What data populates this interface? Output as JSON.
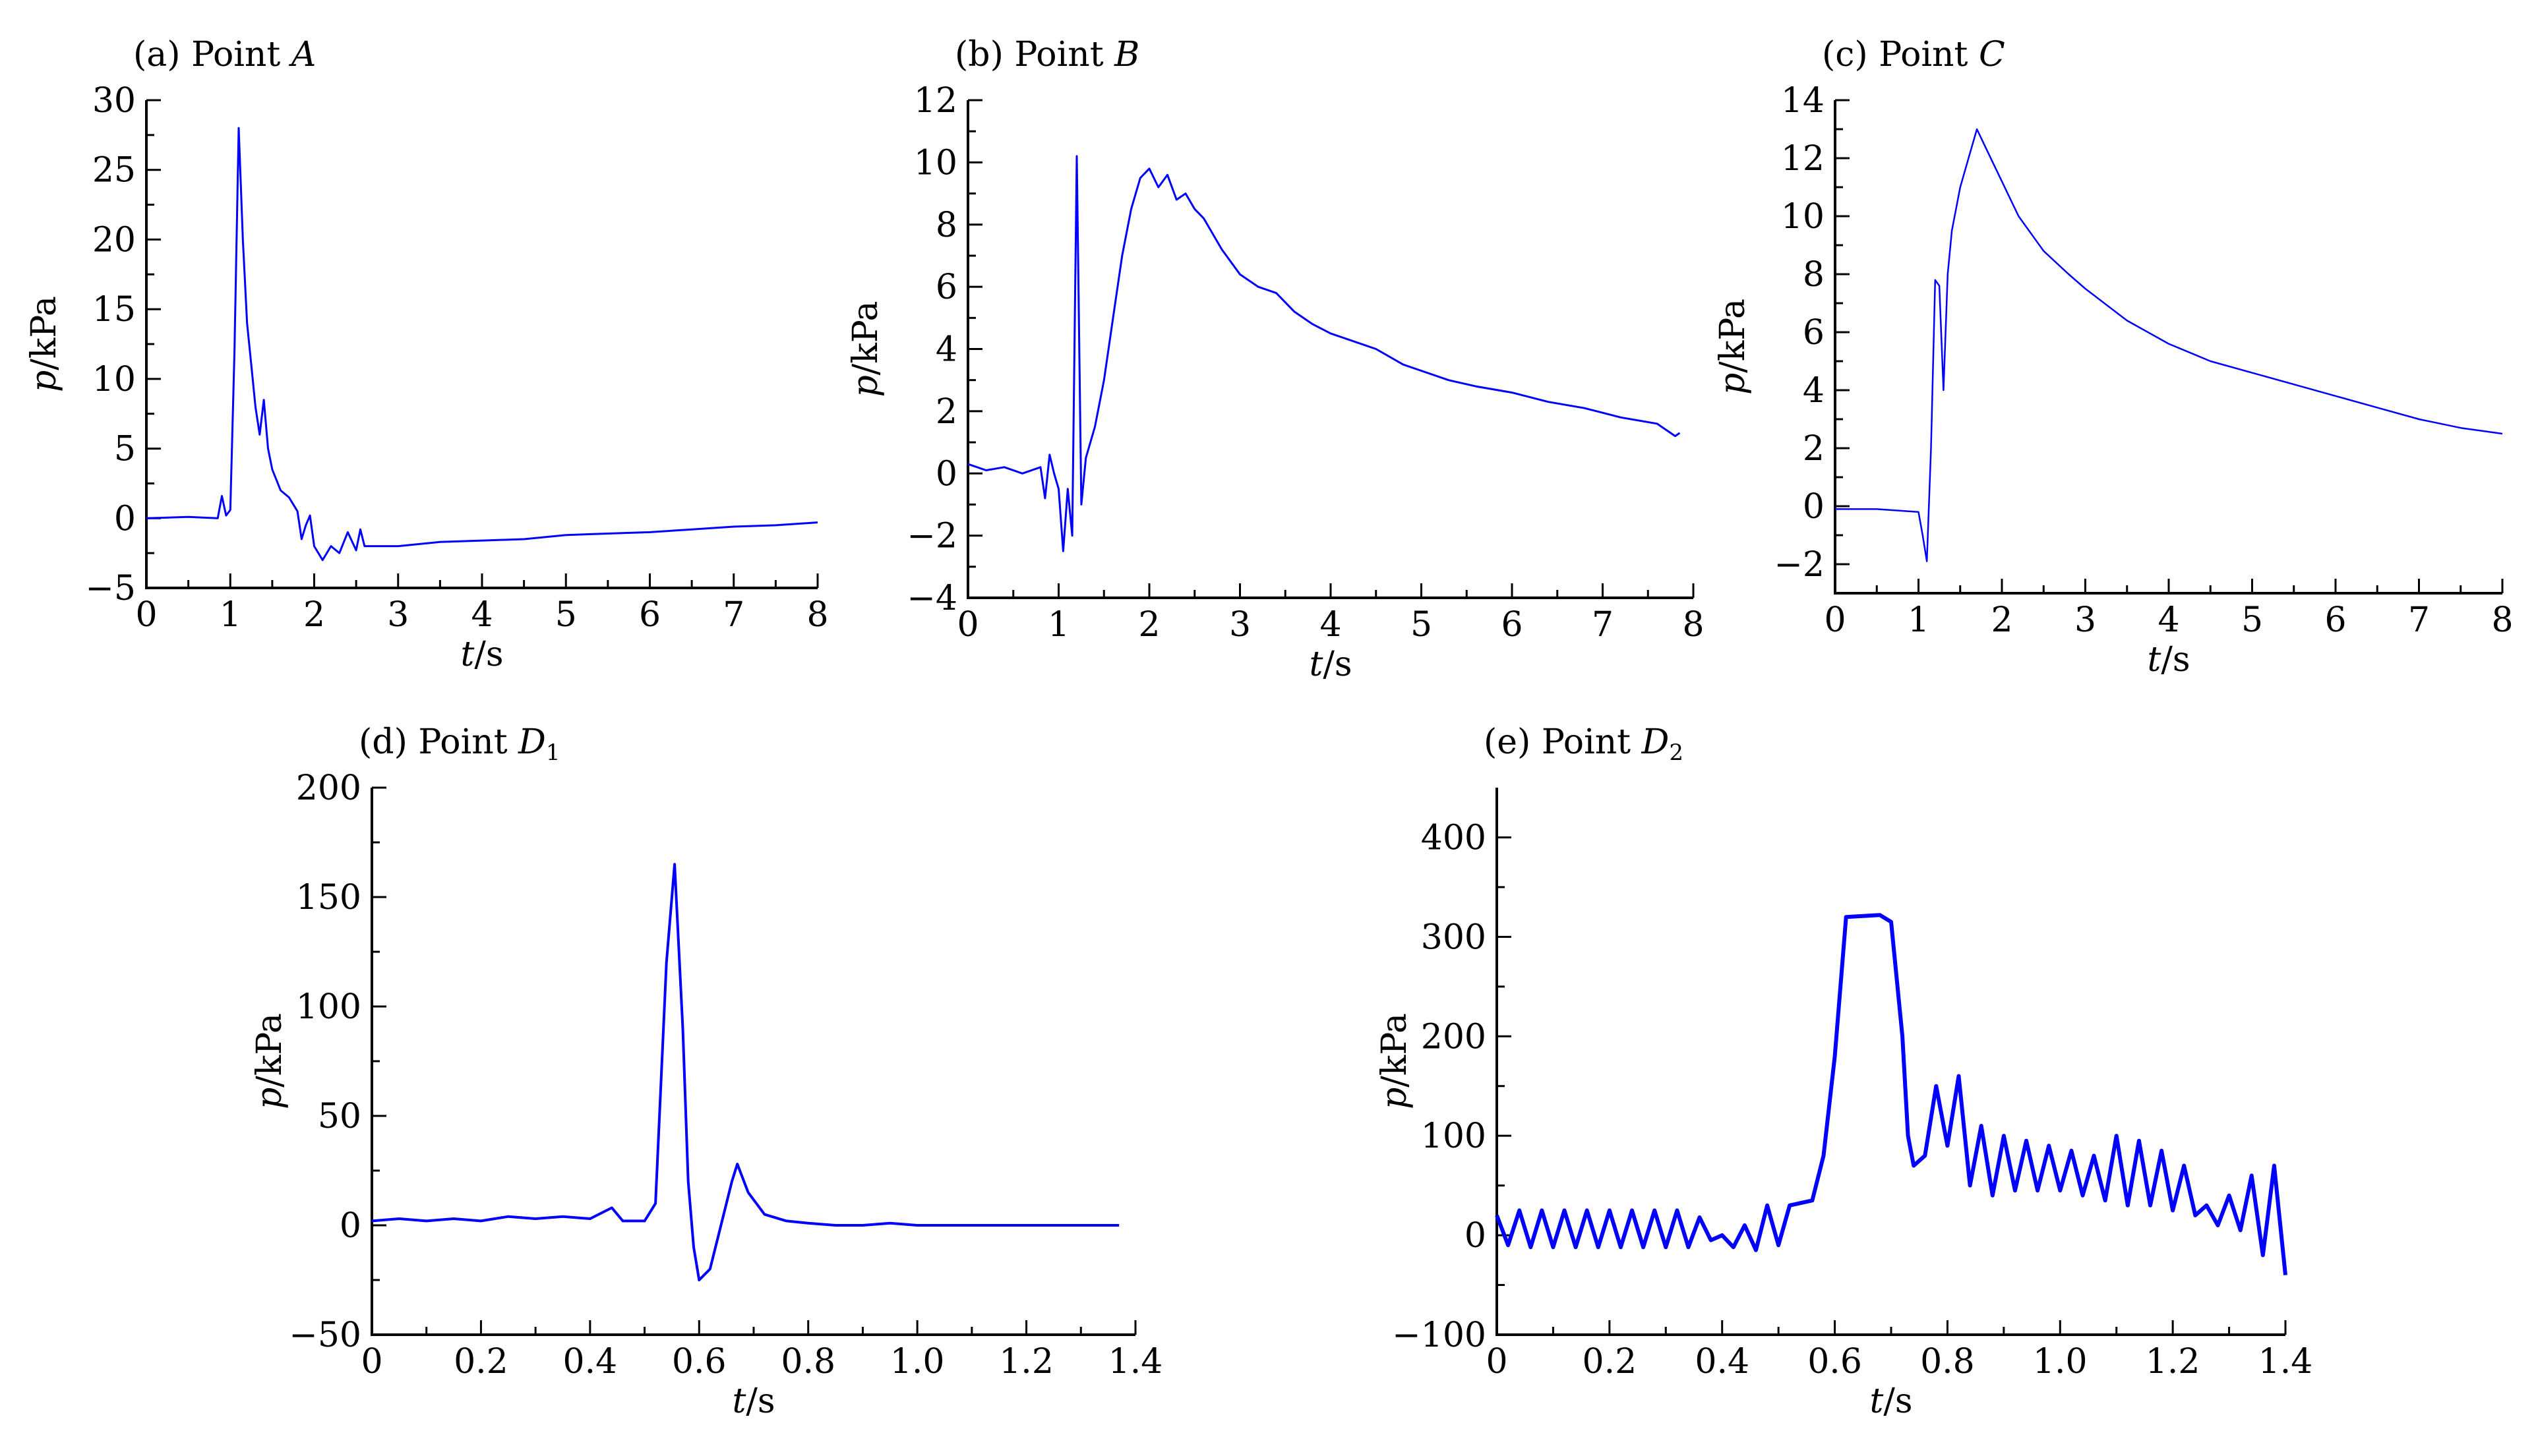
{
  "colors": {
    "series": "#0000ff",
    "axis": "#000000",
    "background": "#ffffff"
  },
  "chart_data": [
    {
      "id": "a",
      "type": "line",
      "title_prefix": "(a) Point ",
      "title_var": "A",
      "title_sub": "",
      "ylabel_var": "p",
      "ylabel_unit": "/kPa",
      "xlabel_var": "t",
      "xlabel_unit": "/s",
      "xlim": [
        0,
        8
      ],
      "ylim": [
        -5,
        30
      ],
      "xticks": [
        0,
        1,
        2,
        3,
        4,
        5,
        6,
        7,
        8
      ],
      "yticks": [
        -5,
        0,
        5,
        10,
        15,
        20,
        25,
        30
      ],
      "xtick_labels": [
        "0",
        "1",
        "2",
        "3",
        "4",
        "5",
        "6",
        "7",
        "8"
      ],
      "ytick_labels": [
        "−5",
        "0",
        "5",
        "10",
        "15",
        "20",
        "25",
        "30"
      ],
      "grid": false,
      "series": [
        {
          "points": [
            [
              0,
              0
            ],
            [
              0.5,
              0.1
            ],
            [
              0.85,
              0
            ],
            [
              0.9,
              1.6
            ],
            [
              0.95,
              0.2
            ],
            [
              1.0,
              0.6
            ],
            [
              1.05,
              12
            ],
            [
              1.1,
              28
            ],
            [
              1.15,
              20
            ],
            [
              1.2,
              14
            ],
            [
              1.25,
              11
            ],
            [
              1.3,
              8
            ],
            [
              1.35,
              6
            ],
            [
              1.4,
              8.5
            ],
            [
              1.45,
              5
            ],
            [
              1.5,
              3.5
            ],
            [
              1.6,
              2
            ],
            [
              1.7,
              1.5
            ],
            [
              1.8,
              0.5
            ],
            [
              1.85,
              -1.5
            ],
            [
              1.9,
              -0.5
            ],
            [
              1.95,
              0.2
            ],
            [
              2.0,
              -2
            ],
            [
              2.1,
              -3
            ],
            [
              2.2,
              -2
            ],
            [
              2.3,
              -2.5
            ],
            [
              2.4,
              -1
            ],
            [
              2.5,
              -2.3
            ],
            [
              2.55,
              -0.8
            ],
            [
              2.6,
              -2
            ],
            [
              2.7,
              -2
            ],
            [
              3.0,
              -2
            ],
            [
              3.5,
              -1.7
            ],
            [
              4.0,
              -1.6
            ],
            [
              4.5,
              -1.5
            ],
            [
              5.0,
              -1.2
            ],
            [
              5.5,
              -1.1
            ],
            [
              6.0,
              -1
            ],
            [
              6.5,
              -0.8
            ],
            [
              7.0,
              -0.6
            ],
            [
              7.5,
              -0.5
            ],
            [
              8.0,
              -0.3
            ]
          ]
        }
      ]
    },
    {
      "id": "b",
      "type": "line",
      "title_prefix": "(b) Point ",
      "title_var": "B",
      "title_sub": "",
      "ylabel_var": "p",
      "ylabel_unit": "/kPa",
      "xlabel_var": "t",
      "xlabel_unit": "/s",
      "xlim": [
        0,
        8
      ],
      "ylim": [
        -4,
        12
      ],
      "xticks": [
        0,
        1,
        2,
        3,
        4,
        5,
        6,
        7,
        8
      ],
      "yticks": [
        -4,
        -2,
        0,
        2,
        4,
        6,
        8,
        10,
        12
      ],
      "xtick_labels": [
        "0",
        "1",
        "2",
        "3",
        "4",
        "5",
        "6",
        "7",
        "8"
      ],
      "ytick_labels": [
        "−4",
        "−2",
        "0",
        "2",
        "4",
        "6",
        "8",
        "10",
        "12"
      ],
      "grid": false,
      "series": [
        {
          "points": [
            [
              0,
              0.3
            ],
            [
              0.2,
              0.1
            ],
            [
              0.4,
              0.2
            ],
            [
              0.6,
              0
            ],
            [
              0.8,
              0.2
            ],
            [
              0.85,
              -0.8
            ],
            [
              0.9,
              0.6
            ],
            [
              0.95,
              0
            ],
            [
              1.0,
              -0.5
            ],
            [
              1.05,
              -2.5
            ],
            [
              1.1,
              -0.5
            ],
            [
              1.15,
              -2
            ],
            [
              1.2,
              10.2
            ],
            [
              1.25,
              -1
            ],
            [
              1.3,
              0.5
            ],
            [
              1.4,
              1.5
            ],
            [
              1.5,
              3
            ],
            [
              1.6,
              5
            ],
            [
              1.7,
              7
            ],
            [
              1.8,
              8.5
            ],
            [
              1.9,
              9.5
            ],
            [
              2.0,
              9.8
            ],
            [
              2.1,
              9.2
            ],
            [
              2.2,
              9.6
            ],
            [
              2.3,
              8.8
            ],
            [
              2.4,
              9.0
            ],
            [
              2.5,
              8.5
            ],
            [
              2.6,
              8.2
            ],
            [
              2.8,
              7.2
            ],
            [
              3.0,
              6.4
            ],
            [
              3.2,
              6.0
            ],
            [
              3.4,
              5.8
            ],
            [
              3.6,
              5.2
            ],
            [
              3.8,
              4.8
            ],
            [
              4.0,
              4.5
            ],
            [
              4.2,
              4.3
            ],
            [
              4.5,
              4.0
            ],
            [
              4.8,
              3.5
            ],
            [
              5.0,
              3.3
            ],
            [
              5.3,
              3.0
            ],
            [
              5.6,
              2.8
            ],
            [
              6.0,
              2.6
            ],
            [
              6.4,
              2.3
            ],
            [
              6.8,
              2.1
            ],
            [
              7.2,
              1.8
            ],
            [
              7.6,
              1.6
            ],
            [
              7.8,
              1.2
            ],
            [
              7.85,
              1.3
            ]
          ]
        }
      ]
    },
    {
      "id": "c",
      "type": "line",
      "title_prefix": "(c) Point ",
      "title_var": "C",
      "title_sub": "",
      "ylabel_var": "p",
      "ylabel_unit": "/kPa",
      "xlabel_var": "t",
      "xlabel_unit": "/s",
      "xlim": [
        0,
        8
      ],
      "ylim": [
        -3,
        14
      ],
      "xticks": [
        0,
        1,
        2,
        3,
        4,
        5,
        6,
        7,
        8
      ],
      "yticks": [
        -2,
        0,
        2,
        4,
        6,
        8,
        10,
        12,
        14
      ],
      "xtick_labels": [
        "0",
        "1",
        "2",
        "3",
        "4",
        "5",
        "6",
        "7",
        "8"
      ],
      "ytick_labels": [
        "−2",
        "0",
        "2",
        "4",
        "6",
        "8",
        "10",
        "12",
        "14"
      ],
      "grid": false,
      "series": [
        {
          "points": [
            [
              0,
              -0.1
            ],
            [
              0.5,
              -0.1
            ],
            [
              1.0,
              -0.2
            ],
            [
              1.05,
              -1
            ],
            [
              1.1,
              -1.9
            ],
            [
              1.15,
              2
            ],
            [
              1.2,
              7.8
            ],
            [
              1.25,
              7.6
            ],
            [
              1.3,
              4.0
            ],
            [
              1.35,
              8.0
            ],
            [
              1.4,
              9.5
            ],
            [
              1.5,
              11
            ],
            [
              1.6,
              12
            ],
            [
              1.7,
              13.0
            ],
            [
              1.8,
              12.4
            ],
            [
              1.9,
              11.8
            ],
            [
              2.0,
              11.2
            ],
            [
              2.2,
              10
            ],
            [
              2.5,
              8.8
            ],
            [
              2.8,
              8.0
            ],
            [
              3.0,
              7.5
            ],
            [
              3.5,
              6.4
            ],
            [
              4.0,
              5.6
            ],
            [
              4.5,
              5.0
            ],
            [
              5.0,
              4.6
            ],
            [
              5.5,
              4.2
            ],
            [
              6.0,
              3.8
            ],
            [
              6.5,
              3.4
            ],
            [
              7.0,
              3.0
            ],
            [
              7.5,
              2.7
            ],
            [
              8.0,
              2.5
            ]
          ]
        }
      ]
    },
    {
      "id": "d",
      "type": "line",
      "title_prefix": "(d) Point ",
      "title_var": "D",
      "title_sub": "1",
      "ylabel_var": "p",
      "ylabel_unit": "/kPa",
      "xlabel_var": "t",
      "xlabel_unit": "/s",
      "xlim": [
        0,
        1.4
      ],
      "ylim": [
        -50,
        200
      ],
      "xticks": [
        0,
        0.2,
        0.4,
        0.6,
        0.8,
        1.0,
        1.2,
        1.4
      ],
      "yticks": [
        -50,
        0,
        50,
        100,
        150,
        200
      ],
      "xtick_labels": [
        "0",
        "0.2",
        "0.4",
        "0.6",
        "0.8",
        "1.0",
        "1.2",
        "1.4"
      ],
      "ytick_labels": [
        "−50",
        "0",
        "50",
        "100",
        "150",
        "200"
      ],
      "grid": false,
      "series": [
        {
          "points": [
            [
              0,
              2
            ],
            [
              0.05,
              3
            ],
            [
              0.1,
              2
            ],
            [
              0.15,
              3
            ],
            [
              0.2,
              2
            ],
            [
              0.25,
              4
            ],
            [
              0.3,
              3
            ],
            [
              0.35,
              4
            ],
            [
              0.4,
              3
            ],
            [
              0.44,
              8
            ],
            [
              0.46,
              2
            ],
            [
              0.5,
              2
            ],
            [
              0.52,
              10
            ],
            [
              0.54,
              120
            ],
            [
              0.555,
              165
            ],
            [
              0.57,
              90
            ],
            [
              0.58,
              20
            ],
            [
              0.59,
              -10
            ],
            [
              0.6,
              -25
            ],
            [
              0.62,
              -20
            ],
            [
              0.64,
              0
            ],
            [
              0.66,
              20
            ],
            [
              0.67,
              28
            ],
            [
              0.69,
              15
            ],
            [
              0.72,
              5
            ],
            [
              0.76,
              2
            ],
            [
              0.8,
              1
            ],
            [
              0.85,
              0
            ],
            [
              0.9,
              0
            ],
            [
              0.95,
              1
            ],
            [
              1.0,
              0
            ],
            [
              1.1,
              0
            ],
            [
              1.2,
              0
            ],
            [
              1.3,
              0
            ],
            [
              1.37,
              0
            ]
          ]
        }
      ]
    },
    {
      "id": "e",
      "type": "line",
      "title_prefix": "(e) Point ",
      "title_var": "D",
      "title_sub": "2",
      "ylabel_var": "p",
      "ylabel_unit": "/kPa",
      "xlabel_var": "t",
      "xlabel_unit": "/s",
      "xlim": [
        0,
        1.4
      ],
      "ylim": [
        -100,
        450
      ],
      "xticks": [
        0,
        0.2,
        0.4,
        0.6,
        0.8,
        1.0,
        1.2,
        1.4
      ],
      "yticks": [
        -100,
        0,
        100,
        200,
        300,
        400
      ],
      "xtick_labels": [
        "0",
        "0.2",
        "0.4",
        "0.6",
        "0.8",
        "1.0",
        "1.2",
        "1.4"
      ],
      "ytick_labels": [
        "−100",
        "0",
        "100",
        "200",
        "300",
        "400"
      ],
      "grid": false,
      "series": [
        {
          "points": [
            [
              0,
              20
            ],
            [
              0.02,
              -10
            ],
            [
              0.04,
              25
            ],
            [
              0.06,
              -12
            ],
            [
              0.08,
              25
            ],
            [
              0.1,
              -12
            ],
            [
              0.12,
              25
            ],
            [
              0.14,
              -12
            ],
            [
              0.16,
              25
            ],
            [
              0.18,
              -12
            ],
            [
              0.2,
              25
            ],
            [
              0.22,
              -12
            ],
            [
              0.24,
              25
            ],
            [
              0.26,
              -12
            ],
            [
              0.28,
              25
            ],
            [
              0.3,
              -12
            ],
            [
              0.32,
              25
            ],
            [
              0.34,
              -12
            ],
            [
              0.36,
              18
            ],
            [
              0.38,
              -5
            ],
            [
              0.4,
              0
            ],
            [
              0.42,
              -12
            ],
            [
              0.44,
              10
            ],
            [
              0.46,
              -15
            ],
            [
              0.48,
              30
            ],
            [
              0.5,
              -10
            ],
            [
              0.52,
              30
            ],
            [
              0.56,
              35
            ],
            [
              0.58,
              80
            ],
            [
              0.6,
              180
            ],
            [
              0.62,
              320
            ],
            [
              0.68,
              322
            ],
            [
              0.7,
              315
            ],
            [
              0.72,
              200
            ],
            [
              0.73,
              100
            ],
            [
              0.74,
              70
            ],
            [
              0.76,
              80
            ],
            [
              0.78,
              150
            ],
            [
              0.8,
              90
            ],
            [
              0.82,
              160
            ],
            [
              0.84,
              50
            ],
            [
              0.86,
              110
            ],
            [
              0.88,
              40
            ],
            [
              0.9,
              100
            ],
            [
              0.92,
              45
            ],
            [
              0.94,
              95
            ],
            [
              0.96,
              45
            ],
            [
              0.98,
              90
            ],
            [
              1.0,
              45
            ],
            [
              1.02,
              85
            ],
            [
              1.04,
              40
            ],
            [
              1.06,
              80
            ],
            [
              1.08,
              35
            ],
            [
              1.1,
              100
            ],
            [
              1.12,
              30
            ],
            [
              1.14,
              95
            ],
            [
              1.16,
              30
            ],
            [
              1.18,
              85
            ],
            [
              1.2,
              25
            ],
            [
              1.22,
              70
            ],
            [
              1.24,
              20
            ],
            [
              1.26,
              30
            ],
            [
              1.28,
              10
            ],
            [
              1.3,
              40
            ],
            [
              1.32,
              5
            ],
            [
              1.34,
              60
            ],
            [
              1.36,
              -20
            ],
            [
              1.38,
              70
            ],
            [
              1.4,
              -40
            ]
          ]
        }
      ]
    }
  ]
}
